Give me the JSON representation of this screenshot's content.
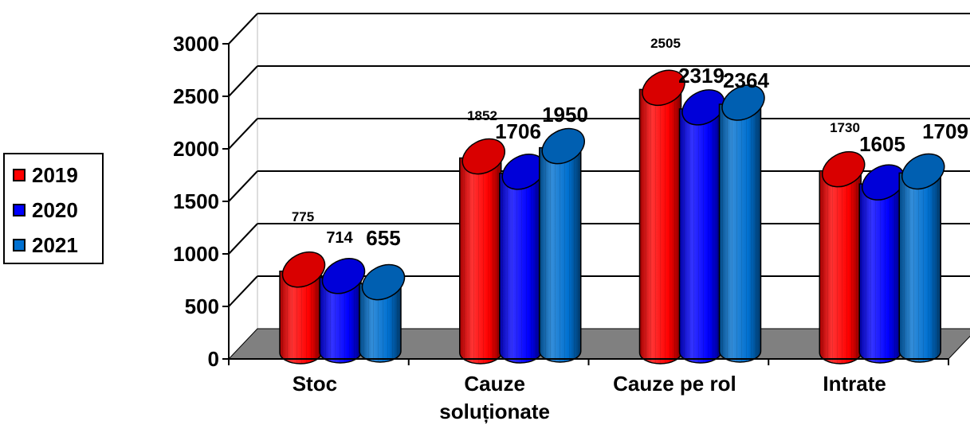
{
  "chart_data": {
    "type": "bar",
    "categories": [
      "Stoc",
      "Cauze soluționate",
      "Cauze pe rol",
      "Intrate"
    ],
    "category_lines": [
      [
        "Stoc"
      ],
      [
        "Cauze",
        "soluționate"
      ],
      [
        "Cauze pe rol"
      ],
      [
        "Intrate"
      ]
    ],
    "series": [
      {
        "name": "2019",
        "color": "#ff0000",
        "values": [
          775,
          1852,
          2505,
          1730
        ]
      },
      {
        "name": "2020",
        "color": "#0000ff",
        "values": [
          714,
          1706,
          2319,
          1605
        ]
      },
      {
        "name": "2021",
        "color": "#0070d0",
        "values": [
          655,
          1950,
          2364,
          1709
        ]
      }
    ],
    "yticks": [
      "0",
      "500",
      "1000",
      "1500",
      "2000",
      "2500",
      "3000"
    ],
    "ylim": [
      0,
      3000
    ],
    "title": "",
    "xlabel": "",
    "ylabel": "",
    "legend_position": "left",
    "grid": true,
    "floor_color": "#808080"
  }
}
